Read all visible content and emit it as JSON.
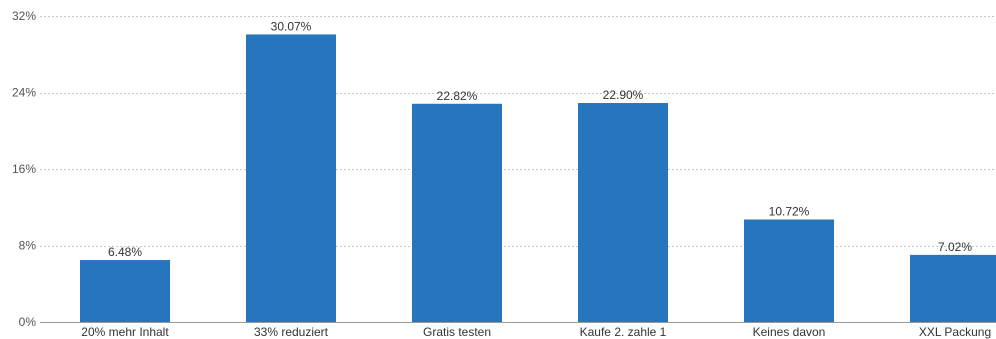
{
  "chart_data": {
    "type": "bar",
    "title": "",
    "xlabel": "",
    "ylabel": "",
    "categories": [
      "20% mehr Inhalt",
      "33% reduziert",
      "Gratis testen",
      "Kaufe 2. zahle 1",
      "Keines davon",
      "XXL Packung"
    ],
    "values": [
      6.48,
      30.07,
      22.82,
      22.9,
      10.72,
      7.02
    ],
    "value_labels": [
      "6.48%",
      "30.07%",
      "22.82%",
      "22.90%",
      "10.72%",
      "7.02%"
    ],
    "ylim": [
      0,
      32
    ],
    "y_ticks": [
      0,
      8,
      16,
      24,
      32
    ],
    "y_tick_labels": [
      "0%",
      "8%",
      "16%",
      "24%",
      "32%"
    ],
    "grid": true,
    "legend": "none",
    "colors": {
      "bar": "#2776bd",
      "grid": "#c8c8c8",
      "axis": "#999999"
    }
  }
}
